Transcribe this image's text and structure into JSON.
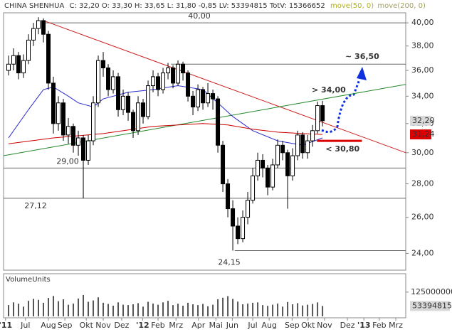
{
  "chart_data": {
    "type": "candlestick",
    "title": "CHINA SHENHUA",
    "subtitle": "C: 32,20 O: 33,30 H: 33,65 L: 31,80 -0,85 LV: 53394815 TotV: 15366652",
    "log_scale": true,
    "xlim": [
      0,
      80.7
    ],
    "xticks": [
      {
        "value": 0.4,
        "label": "'11"
      },
      {
        "value": 4.4,
        "label": "Jul"
      },
      {
        "value": 9,
        "label": "Aug"
      },
      {
        "value": 12.3,
        "label": "Sep"
      },
      {
        "value": 16.6,
        "label": "Okt"
      },
      {
        "value": 20,
        "label": "Nov"
      },
      {
        "value": 23.7,
        "label": "Dez"
      },
      {
        "value": 27.9,
        "label": "'12"
      },
      {
        "value": 31,
        "label": "Feb"
      },
      {
        "value": 34.6,
        "label": "Mrz"
      },
      {
        "value": 39.1,
        "label": "Apr"
      },
      {
        "value": 42.6,
        "label": "Mai"
      },
      {
        "value": 45.9,
        "label": "Jun"
      },
      {
        "value": 50,
        "label": "Jul"
      },
      {
        "value": 53.3,
        "label": "Aug"
      },
      {
        "value": 57.9,
        "label": "Sep"
      },
      {
        "value": 61.1,
        "label": "Okt"
      },
      {
        "value": 64.4,
        "label": "Nov"
      },
      {
        "value": 69,
        "label": "Dez"
      },
      {
        "value": 72.3,
        "label": "'13"
      },
      {
        "value": 75.4,
        "label": "Feb"
      },
      {
        "value": 78.7,
        "label": "Mrz"
      }
    ],
    "ylim": [
      23.2,
      40.9
    ],
    "yticks": [
      {
        "value": 24,
        "label": "24,00"
      },
      {
        "value": 26,
        "label": "26,00"
      },
      {
        "value": 28,
        "label": "28,00"
      },
      {
        "value": 30,
        "label": "30,00"
      },
      {
        "value": 32,
        "label": "32,00"
      },
      {
        "value": 34,
        "label": "34,00"
      },
      {
        "value": 36,
        "label": "36,00"
      },
      {
        "value": 38,
        "label": "38,00"
      },
      {
        "value": 40,
        "label": "40,00"
      }
    ],
    "candles": {
      "up_color": "#ffffff",
      "down_color": "#000000",
      "x": [
        1,
        2,
        3,
        4,
        5,
        6,
        7,
        8,
        9,
        10,
        11,
        12,
        13,
        14,
        15,
        16,
        17,
        18,
        19,
        20,
        21,
        22,
        23,
        24,
        25,
        26,
        27,
        28,
        29,
        30,
        31,
        32,
        33,
        34,
        35,
        36,
        37,
        38,
        39,
        40,
        41,
        42,
        43,
        44,
        45,
        46,
        47,
        48,
        49,
        50,
        51,
        52,
        53,
        54,
        55,
        56,
        57,
        58,
        59,
        60,
        61,
        62,
        63,
        64
      ],
      "open": [
        36.0,
        36.5,
        37.2,
        35.8,
        36.8,
        38.5,
        39.5,
        40.2,
        39.0,
        35.0,
        32.0,
        33.5,
        31.2,
        31.8,
        30.5,
        31.0,
        29.5,
        30.8,
        33.5,
        36.8,
        36.2,
        34.5,
        35.5,
        33.0,
        34.0,
        32.8,
        31.5,
        33.5,
        32.5,
        34.8,
        35.5,
        34.5,
        35.8,
        36.2,
        35.0,
        36.5,
        35.8,
        34.0,
        33.2,
        34.5,
        33.5,
        34.2,
        33.8,
        30.5,
        28.0,
        26.5,
        25.5,
        24.8,
        26.0,
        27.0,
        28.5,
        29.5,
        29.0,
        27.8,
        29.2,
        30.5,
        30.0,
        28.5,
        29.8,
        31.2,
        30.0,
        30.8,
        31.5,
        33.3
      ],
      "high": [
        37.2,
        37.8,
        37.5,
        37.3,
        39.0,
        40.0,
        40.5,
        40.4,
        39.3,
        35.5,
        34.0,
        33.8,
        32.4,
        32.0,
        31.5,
        31.2,
        31.2,
        34.0,
        37.2,
        37.5,
        36.5,
        36.0,
        35.8,
        34.5,
        34.3,
        33.0,
        34.0,
        33.8,
        35.2,
        36.0,
        35.8,
        36.2,
        36.6,
        36.4,
        36.8,
        36.7,
        36.0,
        34.4,
        34.9,
        34.7,
        35.0,
        34.5,
        34.0,
        30.8,
        28.3,
        27.0,
        26.0,
        26.4,
        27.5,
        29.0,
        30.0,
        29.9,
        29.2,
        29.6,
        30.9,
        30.8,
        30.2,
        30.3,
        31.5,
        31.4,
        31.2,
        31.9,
        33.6,
        33.65
      ],
      "low": [
        35.6,
        36.0,
        35.3,
        35.4,
        36.5,
        38.0,
        39.0,
        38.3,
        34.5,
        31.3,
        31.5,
        30.8,
        30.6,
        30.0,
        29.8,
        27.12,
        29.2,
        30.5,
        33.2,
        35.5,
        34.0,
        34.2,
        32.5,
        32.6,
        32.2,
        31.0,
        31.2,
        32.0,
        32.3,
        34.3,
        34.0,
        34.2,
        35.3,
        34.6,
        34.8,
        35.2,
        33.6,
        32.6,
        32.9,
        33.0,
        33.2,
        33.0,
        30.0,
        27.5,
        26.0,
        24.15,
        24.5,
        24.6,
        25.6,
        26.8,
        28.2,
        28.4,
        27.3,
        27.6,
        29.0,
        29.5,
        26.5,
        28.2,
        29.5,
        29.6,
        29.6,
        30.4,
        31.3,
        31.8
      ],
      "close": [
        36.5,
        37.2,
        35.8,
        36.8,
        38.5,
        39.5,
        40.2,
        39.0,
        35.0,
        32.0,
        33.5,
        31.2,
        31.8,
        30.5,
        31.0,
        29.5,
        30.8,
        33.5,
        36.8,
        36.2,
        34.5,
        35.5,
        33.0,
        34.0,
        32.8,
        31.5,
        33.5,
        32.5,
        34.8,
        35.5,
        34.5,
        35.8,
        36.2,
        35.0,
        36.5,
        35.8,
        34.0,
        33.2,
        34.5,
        33.5,
        34.2,
        33.8,
        30.5,
        28.0,
        26.5,
        25.5,
        24.8,
        26.0,
        27.0,
        28.5,
        29.5,
        29.0,
        27.8,
        29.2,
        30.5,
        30.0,
        28.5,
        29.8,
        31.2,
        30.0,
        30.8,
        31.5,
        33.3,
        32.2
      ]
    },
    "series": [
      {
        "name": "move(50, 0)",
        "color": "#2a2acc",
        "label_color": "#b0b020",
        "x": [
          1,
          5,
          8,
          10,
          13,
          15,
          18,
          20,
          25,
          30,
          35,
          40,
          43,
          46,
          50,
          55,
          60,
          64
        ],
        "values": [
          31,
          33,
          34.5,
          34.7,
          34,
          33.5,
          33.2,
          33.8,
          34.3,
          34.5,
          34.8,
          34.5,
          33.5,
          32.5,
          31.5,
          30.8,
          30.5,
          31.0
        ]
      },
      {
        "name": "move(200, 0)",
        "color": "#cc0000",
        "label_color": "#a0a060",
        "x": [
          1,
          10,
          20,
          30,
          40,
          45,
          50,
          55,
          60,
          64
        ],
        "values": [
          30.6,
          31.0,
          31.3,
          31.8,
          32.0,
          31.9,
          31.6,
          31.4,
          31.3,
          31.24
        ]
      }
    ],
    "trendlines": [
      {
        "color": "#cc2222",
        "x": [
          8,
          80.7
        ],
        "values": [
          40.2,
          30.0
        ]
      },
      {
        "color": "#22882a",
        "x": [
          0,
          80.7
        ],
        "values": [
          29.8,
          34.9
        ]
      }
    ],
    "levels": [
      {
        "value": 40,
        "label": "40,00",
        "x": [
          8,
          80.7
        ]
      },
      {
        "value": 36.5,
        "x": [
          33.6,
          80.7
        ]
      },
      {
        "value": 29,
        "label": "29,00",
        "x": [
          0,
          80.7
        ]
      },
      {
        "value": 27.12,
        "label": "27,12",
        "x": [
          0,
          80.7
        ]
      },
      {
        "value": 24.15,
        "label": "24,15",
        "x": [
          46.4,
          80.7
        ]
      }
    ],
    "support": {
      "value": 30.8,
      "label": "< 30,80",
      "color": "#dd0000",
      "x": [
        62.9,
        71.9
      ]
    },
    "annotations": [
      {
        "text": "> 34,00",
        "color": "#1030e0"
      },
      {
        "text": "~ 36,50",
        "color": "#1030e0"
      }
    ],
    "last_price": {
      "value": 32.2,
      "label": "32,20"
    },
    "ma_last": {
      "value": 31.24,
      "label": "31,24"
    },
    "volume": {
      "title": "VolumeUnits",
      "color": "#555555",
      "ylim": [
        0,
        172000000
      ],
      "yticks": [
        125000000
      ],
      "values": [
        58000000,
        72000000,
        65000000,
        50000000,
        80000000,
        90000000,
        85000000,
        70000000,
        95000000,
        105000000,
        78000000,
        88000000,
        60000000,
        66000000,
        92000000,
        110000000,
        75000000,
        82000000,
        98000000,
        70000000,
        64000000,
        55000000,
        72000000,
        60000000,
        58000000,
        62000000,
        68000000,
        50000000,
        75000000,
        66000000,
        60000000,
        72000000,
        80000000,
        58000000,
        65000000,
        55000000,
        70000000,
        62000000,
        58000000,
        64000000,
        52000000,
        60000000,
        88000000,
        96000000,
        104000000,
        90000000,
        76000000,
        62000000,
        66000000,
        70000000,
        72000000,
        58000000,
        54000000,
        60000000,
        66000000,
        50000000,
        74000000,
        62000000,
        68000000,
        56000000,
        60000000,
        64000000,
        72000000,
        53394815
      ],
      "last": 53394815
    }
  }
}
